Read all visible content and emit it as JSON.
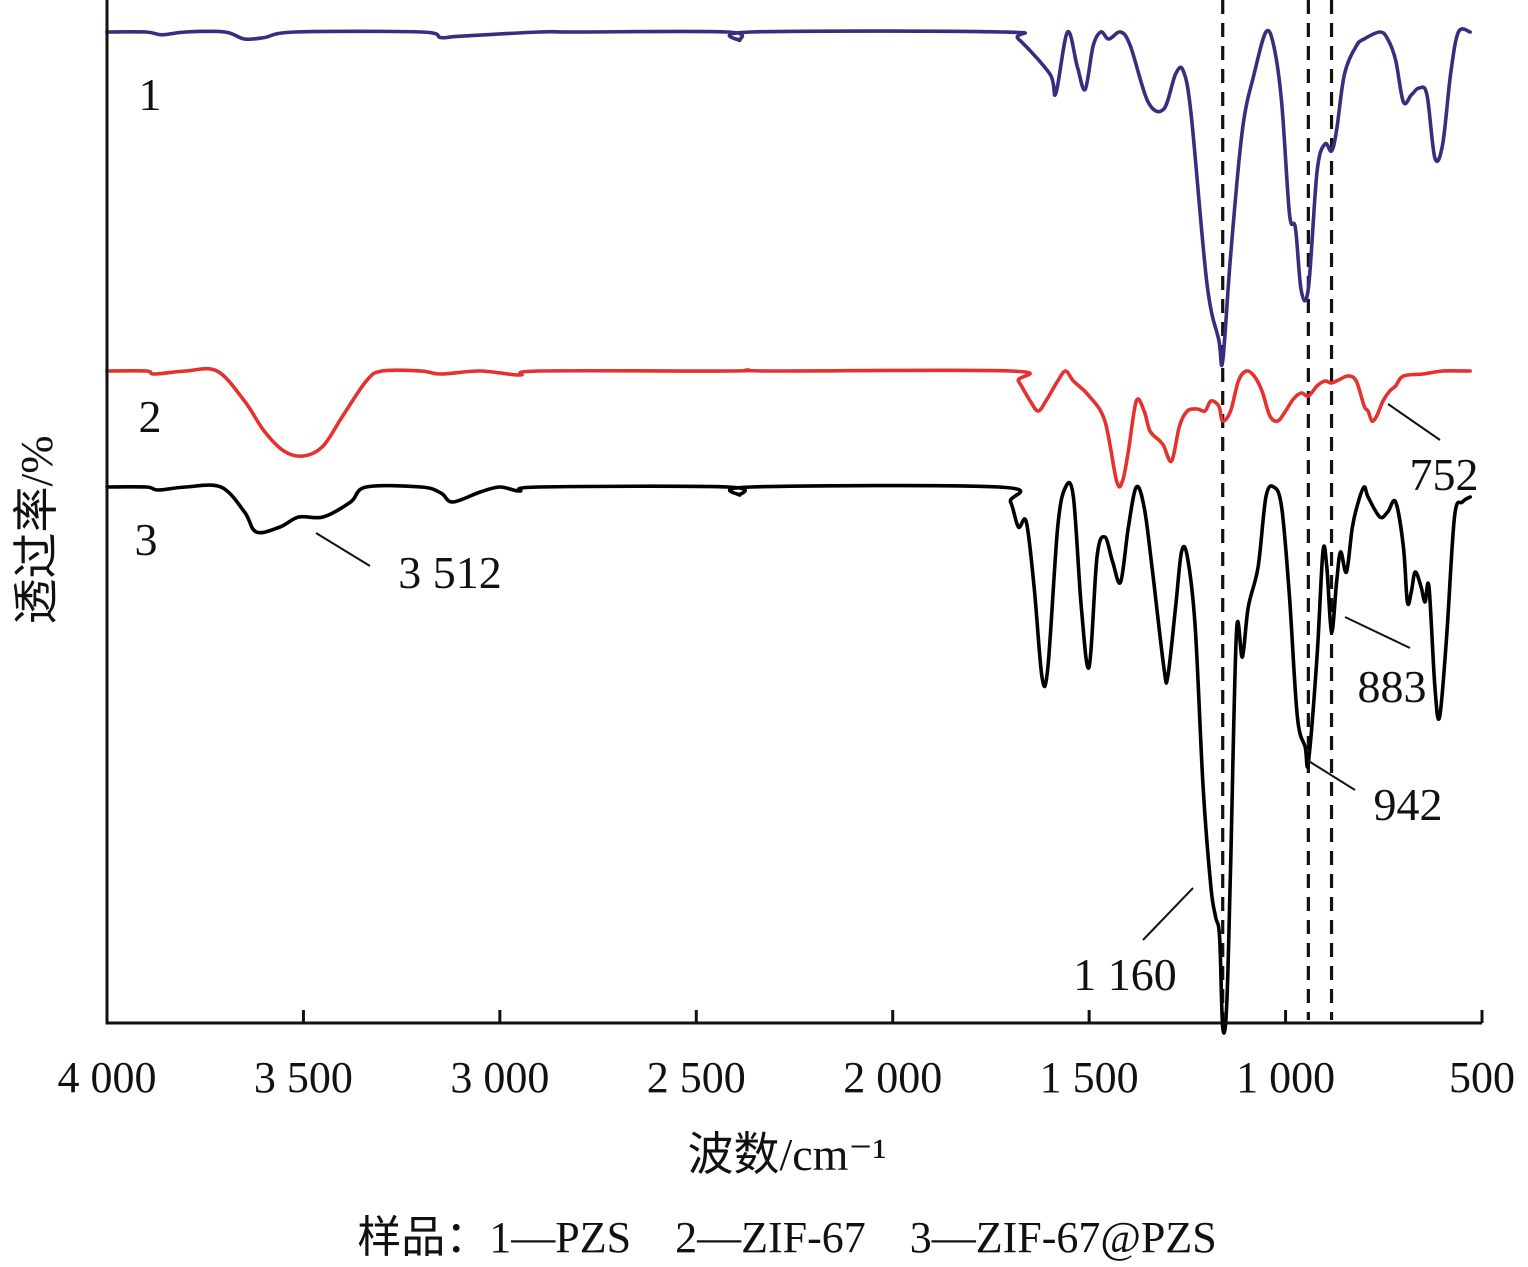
{
  "chart_data": {
    "type": "line",
    "xlabel": "波数/cm⁻¹",
    "ylabel": "透过率/%",
    "xlim": [
      4000,
      500
    ],
    "x_reversed": true,
    "y_ticks_shown": false,
    "grid": false,
    "x_ticks": [
      {
        "value": 4000,
        "label": "4 000"
      },
      {
        "value": 3500,
        "label": "3 500"
      },
      {
        "value": 3000,
        "label": "3 000"
      },
      {
        "value": 2500,
        "label": "2 500"
      },
      {
        "value": 2000,
        "label": "2 000"
      },
      {
        "value": 1500,
        "label": "1 500"
      },
      {
        "value": 1000,
        "label": "1 000"
      },
      {
        "value": 500,
        "label": "500"
      }
    ],
    "caption": "样品：1—PZS　2—ZIF-67　3—ZIF-67@PZS",
    "guides": [
      1160,
      942,
      883
    ],
    "series": [
      {
        "label": "1",
        "color": "#3d2c7e",
        "points": [
          [
            4000,
            0
          ],
          [
            3900,
            0
          ],
          [
            3860,
            2
          ],
          [
            3800,
            0
          ],
          [
            3700,
            0
          ],
          [
            3650,
            5
          ],
          [
            3600,
            4
          ],
          [
            3520,
            0
          ],
          [
            3200,
            0
          ],
          [
            3150,
            4
          ],
          [
            3100,
            3
          ],
          [
            2900,
            0
          ],
          [
            2800,
            0
          ],
          [
            2420,
            0
          ],
          [
            2390,
            6
          ],
          [
            2360,
            0
          ],
          [
            1720,
            0
          ],
          [
            1680,
            5
          ],
          [
            1600,
            30
          ],
          [
            1585,
            44
          ],
          [
            1555,
            0
          ],
          [
            1530,
            25
          ],
          [
            1510,
            41
          ],
          [
            1490,
            10
          ],
          [
            1470,
            0
          ],
          [
            1450,
            5
          ],
          [
            1420,
            0
          ],
          [
            1395,
            10
          ],
          [
            1350,
            50
          ],
          [
            1310,
            55
          ],
          [
            1280,
            30
          ],
          [
            1260,
            28
          ],
          [
            1240,
            60
          ],
          [
            1200,
            180
          ],
          [
            1170,
            220
          ],
          [
            1160,
            235
          ],
          [
            1140,
            160
          ],
          [
            1110,
            70
          ],
          [
            1080,
            30
          ],
          [
            1050,
            0
          ],
          [
            1030,
            10
          ],
          [
            1010,
            50
          ],
          [
            990,
            130
          ],
          [
            975,
            140
          ],
          [
            960,
            185
          ],
          [
            942,
            183
          ],
          [
            920,
            100
          ],
          [
            900,
            80
          ],
          [
            883,
            85
          ],
          [
            870,
            70
          ],
          [
            850,
            30
          ],
          [
            820,
            10
          ],
          [
            800,
            5
          ],
          [
            760,
            0
          ],
          [
            740,
            5
          ],
          [
            720,
            20
          ],
          [
            700,
            50
          ],
          [
            680,
            45
          ],
          [
            660,
            40
          ],
          [
            640,
            45
          ],
          [
            620,
            90
          ],
          [
            600,
            80
          ],
          [
            580,
            30
          ],
          [
            560,
            0
          ],
          [
            530,
            0
          ]
        ]
      },
      {
        "label": "2",
        "color": "#e4322f",
        "points": [
          [
            4000,
            0
          ],
          [
            3900,
            0
          ],
          [
            3880,
            3
          ],
          [
            3800,
            0
          ],
          [
            3720,
            0
          ],
          [
            3650,
            30
          ],
          [
            3600,
            60
          ],
          [
            3550,
            80
          ],
          [
            3500,
            85
          ],
          [
            3450,
            75
          ],
          [
            3400,
            45
          ],
          [
            3340,
            10
          ],
          [
            3300,
            0
          ],
          [
            3200,
            0
          ],
          [
            3150,
            3
          ],
          [
            3050,
            0
          ],
          [
            2950,
            4
          ],
          [
            2900,
            0
          ],
          [
            2420,
            0
          ],
          [
            2370,
            -1
          ],
          [
            2300,
            0
          ],
          [
            1700,
            0
          ],
          [
            1680,
            10
          ],
          [
            1650,
            30
          ],
          [
            1630,
            40
          ],
          [
            1610,
            30
          ],
          [
            1580,
            10
          ],
          [
            1560,
            0
          ],
          [
            1540,
            10
          ],
          [
            1500,
            25
          ],
          [
            1460,
            50
          ],
          [
            1430,
            110
          ],
          [
            1415,
            110
          ],
          [
            1400,
            80
          ],
          [
            1380,
            30
          ],
          [
            1360,
            40
          ],
          [
            1345,
            60
          ],
          [
            1320,
            70
          ],
          [
            1310,
            75
          ],
          [
            1290,
            90
          ],
          [
            1270,
            55
          ],
          [
            1250,
            40
          ],
          [
            1225,
            38
          ],
          [
            1205,
            40
          ],
          [
            1190,
            30
          ],
          [
            1170,
            35
          ],
          [
            1160,
            50
          ],
          [
            1140,
            40
          ],
          [
            1120,
            10
          ],
          [
            1100,
            0
          ],
          [
            1080,
            5
          ],
          [
            1060,
            20
          ],
          [
            1040,
            45
          ],
          [
            1020,
            50
          ],
          [
            1000,
            40
          ],
          [
            980,
            28
          ],
          [
            960,
            22
          ],
          [
            942,
            25
          ],
          [
            920,
            15
          ],
          [
            900,
            10
          ],
          [
            883,
            12
          ],
          [
            860,
            8
          ],
          [
            840,
            5
          ],
          [
            820,
            10
          ],
          [
            800,
            35
          ],
          [
            790,
            40
          ],
          [
            780,
            50
          ],
          [
            768,
            45
          ],
          [
            752,
            30
          ],
          [
            735,
            20
          ],
          [
            720,
            15
          ],
          [
            700,
            5
          ],
          [
            650,
            3
          ],
          [
            600,
            0
          ],
          [
            530,
            0
          ]
        ]
      },
      {
        "label": "3",
        "color": "#000000",
        "points": [
          [
            4000,
            0
          ],
          [
            3900,
            0
          ],
          [
            3870,
            3
          ],
          [
            3800,
            0
          ],
          [
            3710,
            0
          ],
          [
            3650,
            25
          ],
          [
            3620,
            45
          ],
          [
            3560,
            40
          ],
          [
            3512,
            30
          ],
          [
            3450,
            30
          ],
          [
            3380,
            15
          ],
          [
            3340,
            0
          ],
          [
            3200,
            0
          ],
          [
            3150,
            6
          ],
          [
            3120,
            15
          ],
          [
            3050,
            5
          ],
          [
            3000,
            0
          ],
          [
            2950,
            4
          ],
          [
            2900,
            0
          ],
          [
            2420,
            0
          ],
          [
            2390,
            8
          ],
          [
            2360,
            0
          ],
          [
            1730,
            0
          ],
          [
            1700,
            15
          ],
          [
            1680,
            40
          ],
          [
            1660,
            35
          ],
          [
            1640,
            100
          ],
          [
            1620,
            190
          ],
          [
            1605,
            180
          ],
          [
            1580,
            40
          ],
          [
            1560,
            0
          ],
          [
            1540,
            10
          ],
          [
            1520,
            120
          ],
          [
            1500,
            180
          ],
          [
            1480,
            70
          ],
          [
            1460,
            50
          ],
          [
            1440,
            75
          ],
          [
            1420,
            95
          ],
          [
            1400,
            40
          ],
          [
            1380,
            0
          ],
          [
            1360,
            20
          ],
          [
            1340,
            80
          ],
          [
            1310,
            180
          ],
          [
            1300,
            190
          ],
          [
            1280,
            120
          ],
          [
            1265,
            65
          ],
          [
            1250,
            70
          ],
          [
            1230,
            140
          ],
          [
            1210,
            300
          ],
          [
            1190,
            400
          ],
          [
            1178,
            430
          ],
          [
            1168,
            450
          ],
          [
            1160,
            540
          ],
          [
            1150,
            520
          ],
          [
            1140,
            380
          ],
          [
            1125,
            145
          ],
          [
            1110,
            170
          ],
          [
            1095,
            120
          ],
          [
            1070,
            80
          ],
          [
            1050,
            10
          ],
          [
            1030,
            0
          ],
          [
            1010,
            20
          ],
          [
            990,
            110
          ],
          [
            970,
            230
          ],
          [
            950,
            260
          ],
          [
            942,
            275
          ],
          [
            920,
            170
          ],
          [
            905,
            65
          ],
          [
            895,
            80
          ],
          [
            883,
            145
          ],
          [
            870,
            95
          ],
          [
            860,
            65
          ],
          [
            845,
            85
          ],
          [
            830,
            40
          ],
          [
            815,
            15
          ],
          [
            800,
            0
          ],
          [
            790,
            10
          ],
          [
            760,
            30
          ],
          [
            740,
            25
          ],
          [
            720,
            15
          ],
          [
            700,
            60
          ],
          [
            690,
            115
          ],
          [
            680,
            105
          ],
          [
            670,
            85
          ],
          [
            655,
            100
          ],
          [
            645,
            115
          ],
          [
            635,
            100
          ],
          [
            620,
            200
          ],
          [
            608,
            230
          ],
          [
            590,
            150
          ],
          [
            570,
            30
          ],
          [
            550,
            15
          ],
          [
            530,
            10
          ]
        ]
      }
    ],
    "annotations": [
      {
        "text": "3 512",
        "x": 3512
      },
      {
        "text": "752",
        "x": 752
      },
      {
        "text": "883",
        "x": 883
      },
      {
        "text": "942",
        "x": 942
      },
      {
        "text": "1 160",
        "x": 1160
      }
    ]
  }
}
